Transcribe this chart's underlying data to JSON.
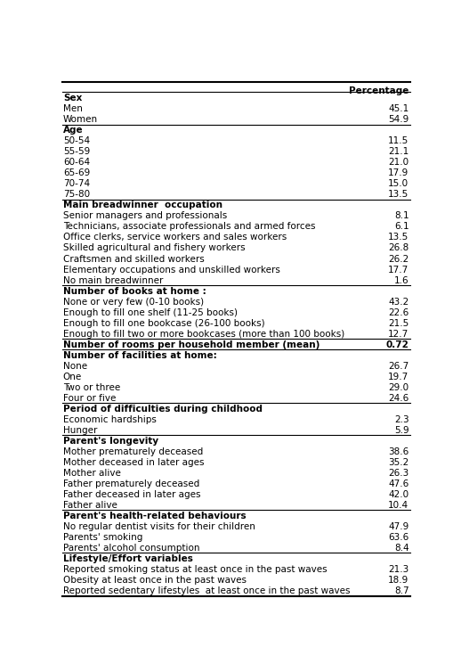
{
  "col_header": "Percentage",
  "rows": [
    {
      "label": "Sex",
      "value": null,
      "bold": true,
      "section_start": true,
      "section_end": false
    },
    {
      "label": "Men",
      "value": "45.1",
      "bold": false,
      "section_start": false,
      "section_end": false
    },
    {
      "label": "Women",
      "value": "54.9",
      "bold": false,
      "section_start": false,
      "section_end": true
    },
    {
      "label": "Age",
      "value": null,
      "bold": true,
      "section_start": true,
      "section_end": false
    },
    {
      "label": "50-54",
      "value": "11.5",
      "bold": false,
      "section_start": false,
      "section_end": false
    },
    {
      "label": "55-59",
      "value": "21.1",
      "bold": false,
      "section_start": false,
      "section_end": false
    },
    {
      "label": "60-64",
      "value": "21.0",
      "bold": false,
      "section_start": false,
      "section_end": false
    },
    {
      "label": "65-69",
      "value": "17.9",
      "bold": false,
      "section_start": false,
      "section_end": false
    },
    {
      "label": "70-74",
      "value": "15.0",
      "bold": false,
      "section_start": false,
      "section_end": false
    },
    {
      "label": "75-80",
      "value": "13.5",
      "bold": false,
      "section_start": false,
      "section_end": true
    },
    {
      "label": "Main breadwinner  occupation",
      "value": null,
      "bold": true,
      "section_start": true,
      "section_end": false
    },
    {
      "label": "Senior managers and professionals",
      "value": "8.1",
      "bold": false,
      "section_start": false,
      "section_end": false
    },
    {
      "label": "Technicians, associate professionals and armed forces",
      "value": "6.1",
      "bold": false,
      "section_start": false,
      "section_end": false
    },
    {
      "label": "Office clerks, service workers and sales workers",
      "value": "13.5",
      "bold": false,
      "section_start": false,
      "section_end": false
    },
    {
      "label": "Skilled agricultural and fishery workers",
      "value": "26.8",
      "bold": false,
      "section_start": false,
      "section_end": false
    },
    {
      "label": "Craftsmen and skilled workers",
      "value": "26.2",
      "bold": false,
      "section_start": false,
      "section_end": false
    },
    {
      "label": "Elementary occupations and unskilled workers",
      "value": "17.7",
      "bold": false,
      "section_start": false,
      "section_end": false
    },
    {
      "label": "No main breadwinner",
      "value": "1.6",
      "bold": false,
      "section_start": false,
      "section_end": true
    },
    {
      "label": "Number of books at home :",
      "value": null,
      "bold": true,
      "section_start": true,
      "section_end": false
    },
    {
      "label": "None or very few (0-10 books)",
      "value": "43.2",
      "bold": false,
      "section_start": false,
      "section_end": false
    },
    {
      "label": "Enough to fill one shelf (11-25 books)",
      "value": "22.6",
      "bold": false,
      "section_start": false,
      "section_end": false
    },
    {
      "label": "Enough to fill one bookcase (26-100 books)",
      "value": "21.5",
      "bold": false,
      "section_start": false,
      "section_end": false
    },
    {
      "label": "Enough to fill two or more bookcases (more than 100 books)",
      "value": "12.7",
      "bold": false,
      "section_start": false,
      "section_end": true
    },
    {
      "label": "Number of rooms per household member (mean)",
      "value": "0.72",
      "bold": true,
      "section_start": true,
      "section_end": true
    },
    {
      "label": "Number of facilities at home:",
      "value": null,
      "bold": true,
      "section_start": true,
      "section_end": false
    },
    {
      "label": "None",
      "value": "26.7",
      "bold": false,
      "section_start": false,
      "section_end": false
    },
    {
      "label": "One",
      "value": "19.7",
      "bold": false,
      "section_start": false,
      "section_end": false
    },
    {
      "label": "Two or three",
      "value": "29.0",
      "bold": false,
      "section_start": false,
      "section_end": false
    },
    {
      "label": "Four or five",
      "value": "24.6",
      "bold": false,
      "section_start": false,
      "section_end": true
    },
    {
      "label": "Period of difficulties during childhood",
      "value": null,
      "bold": true,
      "section_start": true,
      "section_end": false
    },
    {
      "label": "Economic hardships",
      "value": "2.3",
      "bold": false,
      "section_start": false,
      "section_end": false
    },
    {
      "label": "Hunger",
      "value": "5.9",
      "bold": false,
      "section_start": false,
      "section_end": true
    },
    {
      "label": "Parent's longevity",
      "value": null,
      "bold": true,
      "section_start": true,
      "section_end": false
    },
    {
      "label": "Mother prematurely deceased",
      "value": "38.6",
      "bold": false,
      "section_start": false,
      "section_end": false
    },
    {
      "label": "Mother deceased in later ages",
      "value": "35.2",
      "bold": false,
      "section_start": false,
      "section_end": false
    },
    {
      "label": "Mother alive",
      "value": "26.3",
      "bold": false,
      "section_start": false,
      "section_end": false
    },
    {
      "label": "Father prematurely deceased",
      "value": "47.6",
      "bold": false,
      "section_start": false,
      "section_end": false
    },
    {
      "label": "Father deceased in later ages",
      "value": "42.0",
      "bold": false,
      "section_start": false,
      "section_end": false
    },
    {
      "label": "Father alive",
      "value": "10.4",
      "bold": false,
      "section_start": false,
      "section_end": true
    },
    {
      "label": "Parent's health-related behaviours",
      "value": null,
      "bold": true,
      "section_start": true,
      "section_end": false
    },
    {
      "label": "No regular dentist visits for their children",
      "value": "47.9",
      "bold": false,
      "section_start": false,
      "section_end": false
    },
    {
      "label": "Parents' smoking",
      "value": "63.6",
      "bold": false,
      "section_start": false,
      "section_end": false
    },
    {
      "label": "Parents' alcohol consumption",
      "value": "8.4",
      "bold": false,
      "section_start": false,
      "section_end": true
    },
    {
      "label": "Lifestyle/Effort variables",
      "value": null,
      "bold": true,
      "section_start": true,
      "section_end": false
    },
    {
      "label": "Reported smoking status at least once in the past waves",
      "value": "21.3",
      "bold": false,
      "section_start": false,
      "section_end": false
    },
    {
      "label": "Obesity at least once in the past waves",
      "value": "18.9",
      "bold": false,
      "section_start": false,
      "section_end": false
    },
    {
      "label": "Reported sedentary lifestyles  at least once in the past waves",
      "value": "8.7",
      "bold": false,
      "section_start": false,
      "section_end": true
    }
  ],
  "bg_color": "#ffffff",
  "text_color": "#000000",
  "line_color": "#000000",
  "font_size": 7.5,
  "header_font_size": 7.5,
  "fig_width": 5.18,
  "fig_height": 7.54,
  "dpi": 100
}
